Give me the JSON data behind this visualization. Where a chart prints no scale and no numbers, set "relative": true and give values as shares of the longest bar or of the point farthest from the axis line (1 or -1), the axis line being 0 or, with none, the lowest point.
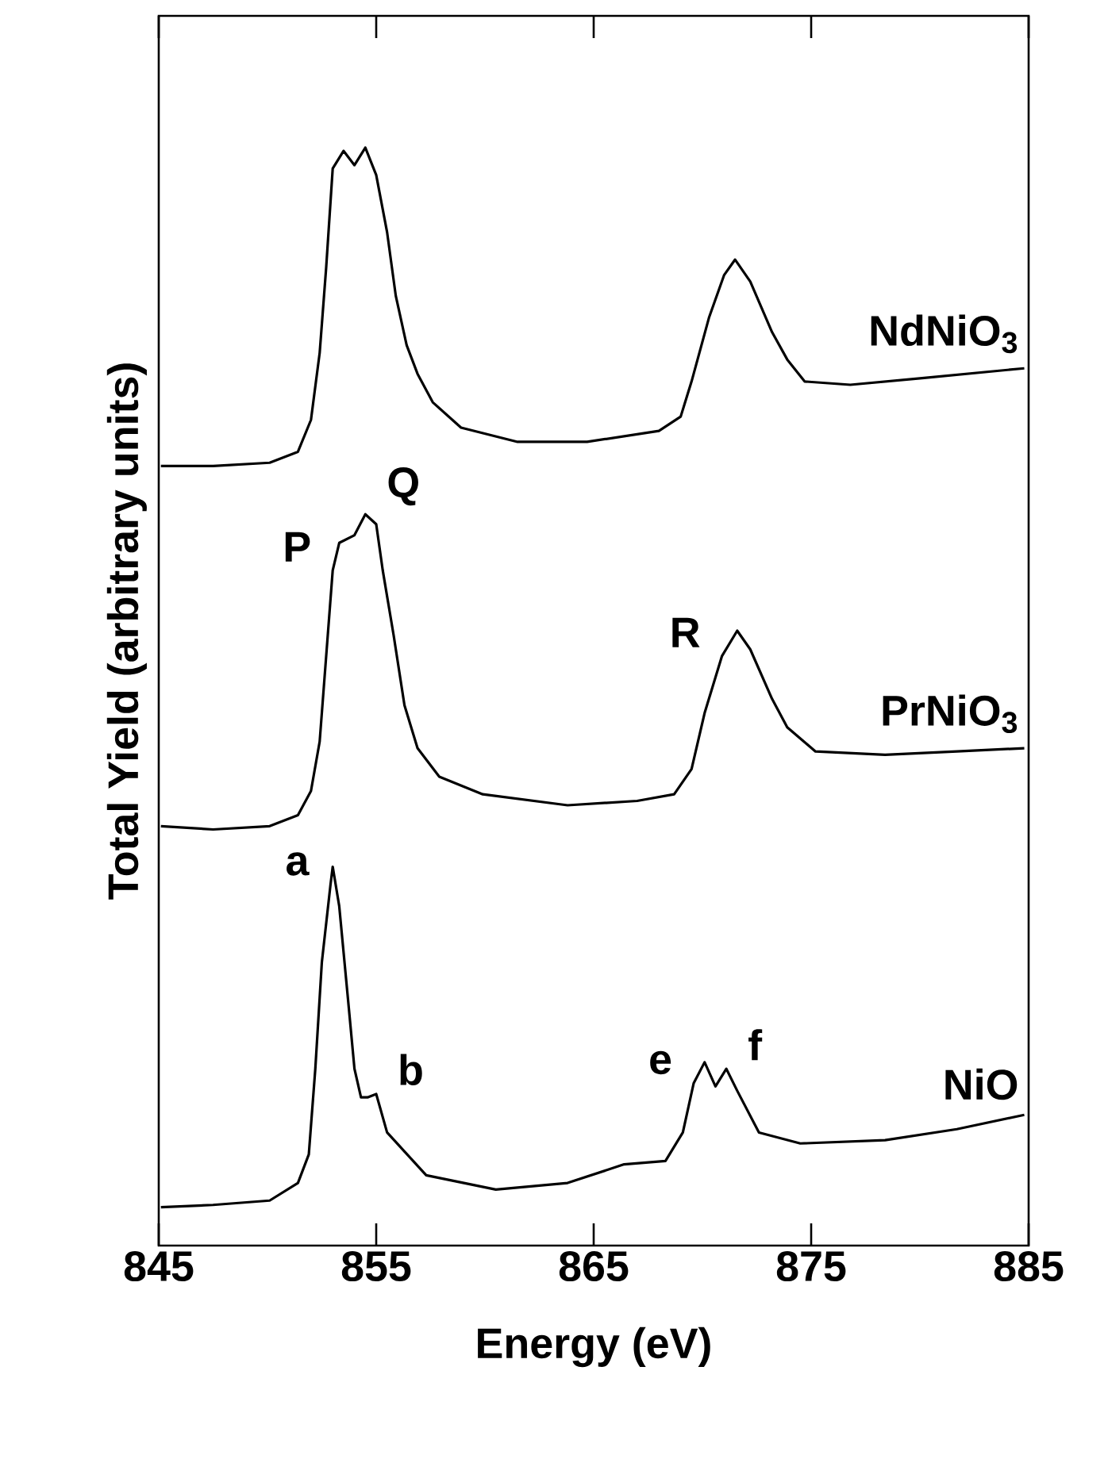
{
  "chart_data": {
    "type": "line",
    "relative": true,
    "xlabel": "Energy   (eV)",
    "ylabel": "Total   Yield   (arbitrary   units)",
    "xlim": [
      845,
      885
    ],
    "xticks": [
      845,
      855,
      865,
      875,
      885
    ],
    "series": [
      {
        "name": "NdNiO$_{3}$",
        "color": "#000000",
        "x": [
          845.1,
          847.5,
          850.1,
          851.4,
          852.0,
          852.4,
          852.7,
          853.0,
          853.5,
          854.0,
          854.5,
          855.0,
          855.5,
          855.9,
          856.4,
          856.9,
          857.6,
          858.9,
          861.5,
          864.7,
          868.0,
          869.0,
          869.5,
          870.3,
          871.0,
          871.5,
          872.2,
          873.2,
          873.9,
          874.7,
          876.8,
          880.1,
          884.8
        ],
        "values": [
          0.71,
          0.71,
          0.713,
          0.723,
          0.752,
          0.813,
          0.891,
          0.981,
          0.997,
          0.984,
          1.0,
          0.975,
          0.923,
          0.865,
          0.82,
          0.794,
          0.768,
          0.745,
          0.732,
          0.732,
          0.742,
          0.755,
          0.787,
          0.845,
          0.884,
          0.898,
          0.878,
          0.832,
          0.807,
          0.787,
          0.784,
          0.79,
          0.799
        ]
      },
      {
        "name": "PrNiO$_{3}$",
        "color": "#000000",
        "x": [
          845.1,
          847.5,
          850.1,
          851.4,
          852.0,
          852.4,
          852.7,
          853.0,
          853.3,
          854.0,
          854.5,
          855.0,
          855.3,
          855.8,
          856.3,
          856.9,
          857.9,
          859.9,
          863.8,
          867.0,
          868.7,
          869.5,
          870.1,
          870.9,
          871.6,
          872.2,
          873.2,
          873.9,
          875.2,
          878.4,
          881.7,
          884.8
        ],
        "values": [
          0.382,
          0.379,
          0.382,
          0.392,
          0.414,
          0.459,
          0.537,
          0.615,
          0.64,
          0.647,
          0.666,
          0.657,
          0.615,
          0.556,
          0.492,
          0.453,
          0.427,
          0.411,
          0.401,
          0.405,
          0.411,
          0.434,
          0.485,
          0.537,
          0.56,
          0.543,
          0.498,
          0.472,
          0.45,
          0.447,
          0.45,
          0.453
        ]
      },
      {
        "name": "NiO",
        "color": "#000000",
        "x": [
          845.1,
          847.5,
          850.1,
          851.4,
          851.9,
          852.2,
          852.5,
          852.9,
          853.0,
          853.3,
          853.7,
          854.0,
          854.3,
          854.6,
          855.0,
          855.5,
          856.1,
          857.3,
          860.5,
          863.8,
          866.4,
          868.3,
          869.1,
          869.6,
          870.1,
          870.6,
          871.1,
          871.6,
          872.6,
          874.5,
          878.4,
          881.7,
          884.8
        ],
        "values": [
          0.035,
          0.037,
          0.041,
          0.057,
          0.083,
          0.161,
          0.258,
          0.329,
          0.345,
          0.309,
          0.225,
          0.161,
          0.135,
          0.135,
          0.138,
          0.103,
          0.09,
          0.064,
          0.051,
          0.057,
          0.074,
          0.077,
          0.103,
          0.148,
          0.167,
          0.145,
          0.161,
          0.141,
          0.103,
          0.093,
          0.096,
          0.106,
          0.119
        ]
      }
    ],
    "annotations": [
      {
        "text": "P",
        "x": 853.0,
        "y": 0.615
      },
      {
        "text": "Q",
        "x": 854.5,
        "y": 0.666
      },
      {
        "text": "R",
        "x": 870.9,
        "y": 0.537
      },
      {
        "text": "a",
        "x": 852.9,
        "y": 0.329
      },
      {
        "text": "b",
        "x": 855.0,
        "y": 0.138
      },
      {
        "text": "e",
        "x": 869.6,
        "y": 0.148
      },
      {
        "text": "f",
        "x": 871.1,
        "y": 0.161
      }
    ]
  }
}
